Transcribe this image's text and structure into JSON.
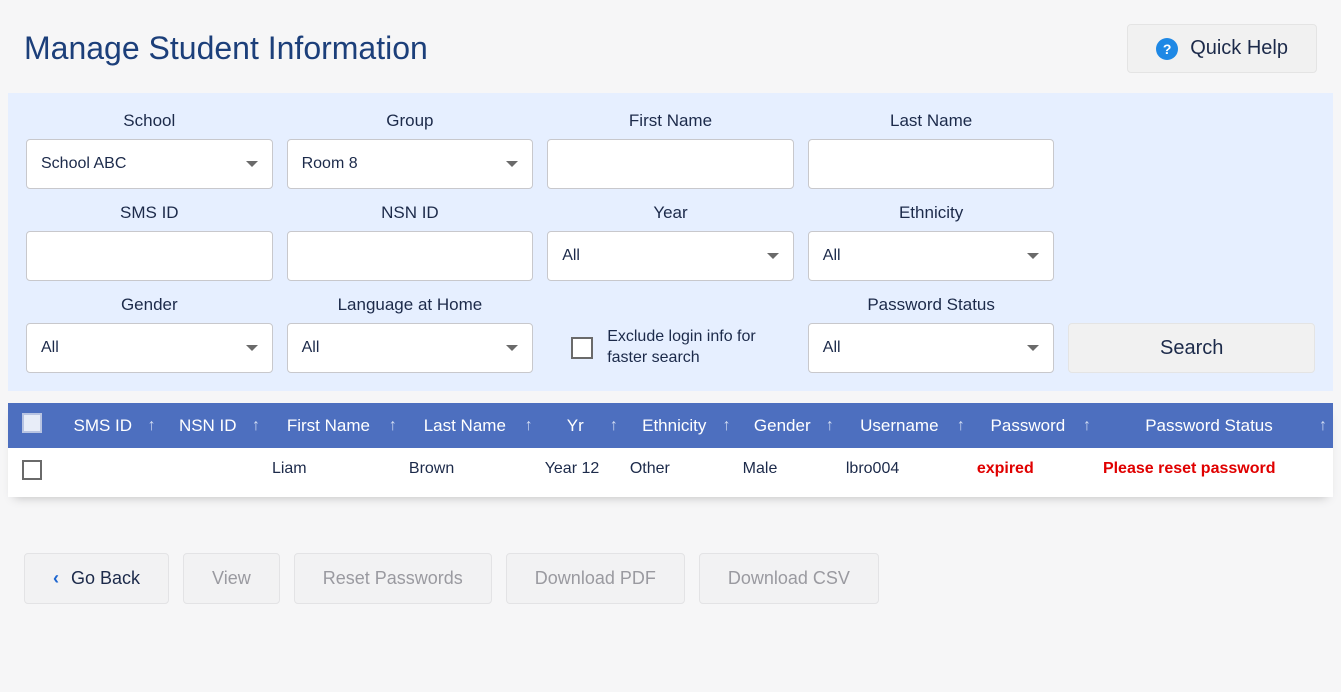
{
  "colors": {
    "page_bg": "#f6f6f7",
    "panel_bg": "#e6efff",
    "accent": "#4d6fbf",
    "title": "#1c3f7a",
    "text": "#1c2a4a",
    "help_icon_bg": "#1e88e5",
    "danger": "#e00000",
    "btn_bg": "#f1f1f1",
    "border": "#c8c8cc",
    "disabled_text": "#9a9aa0"
  },
  "header": {
    "title": "Manage Student Information",
    "quick_help": "Quick Help"
  },
  "filters": {
    "school": {
      "label": "School",
      "value": "School ABC"
    },
    "group": {
      "label": "Group",
      "value": "Room 8"
    },
    "first_name": {
      "label": "First Name",
      "value": ""
    },
    "last_name": {
      "label": "Last Name",
      "value": ""
    },
    "sms_id": {
      "label": "SMS ID",
      "value": ""
    },
    "nsn_id": {
      "label": "NSN ID",
      "value": ""
    },
    "year": {
      "label": "Year",
      "value": "All"
    },
    "ethnicity": {
      "label": "Ethnicity",
      "value": "All"
    },
    "gender": {
      "label": "Gender",
      "value": "All"
    },
    "language": {
      "label": "Language at Home",
      "value": "All"
    },
    "exclude_login": {
      "label": "Exclude login info for faster search",
      "checked": false
    },
    "password_status": {
      "label": "Password Status",
      "value": "All"
    },
    "search_button": "Search"
  },
  "table": {
    "columns": [
      "",
      "SMS ID",
      "NSN ID",
      "First Name",
      "Last Name",
      "Yr",
      "Ethnicity",
      "Gender",
      "Username",
      "Password",
      "Password Status"
    ],
    "rows": [
      {
        "sms_id": "",
        "nsn_id": "",
        "first_name": "Liam",
        "last_name": "Brown",
        "year": "Year 12",
        "ethnicity": "Other",
        "gender": "Male",
        "username": "lbro004",
        "password": "expired",
        "password_status": "Please reset password"
      }
    ]
  },
  "actions": {
    "go_back": "Go Back",
    "view": "View",
    "reset_passwords": "Reset Passwords",
    "download_pdf": "Download PDF",
    "download_csv": "Download CSV"
  }
}
